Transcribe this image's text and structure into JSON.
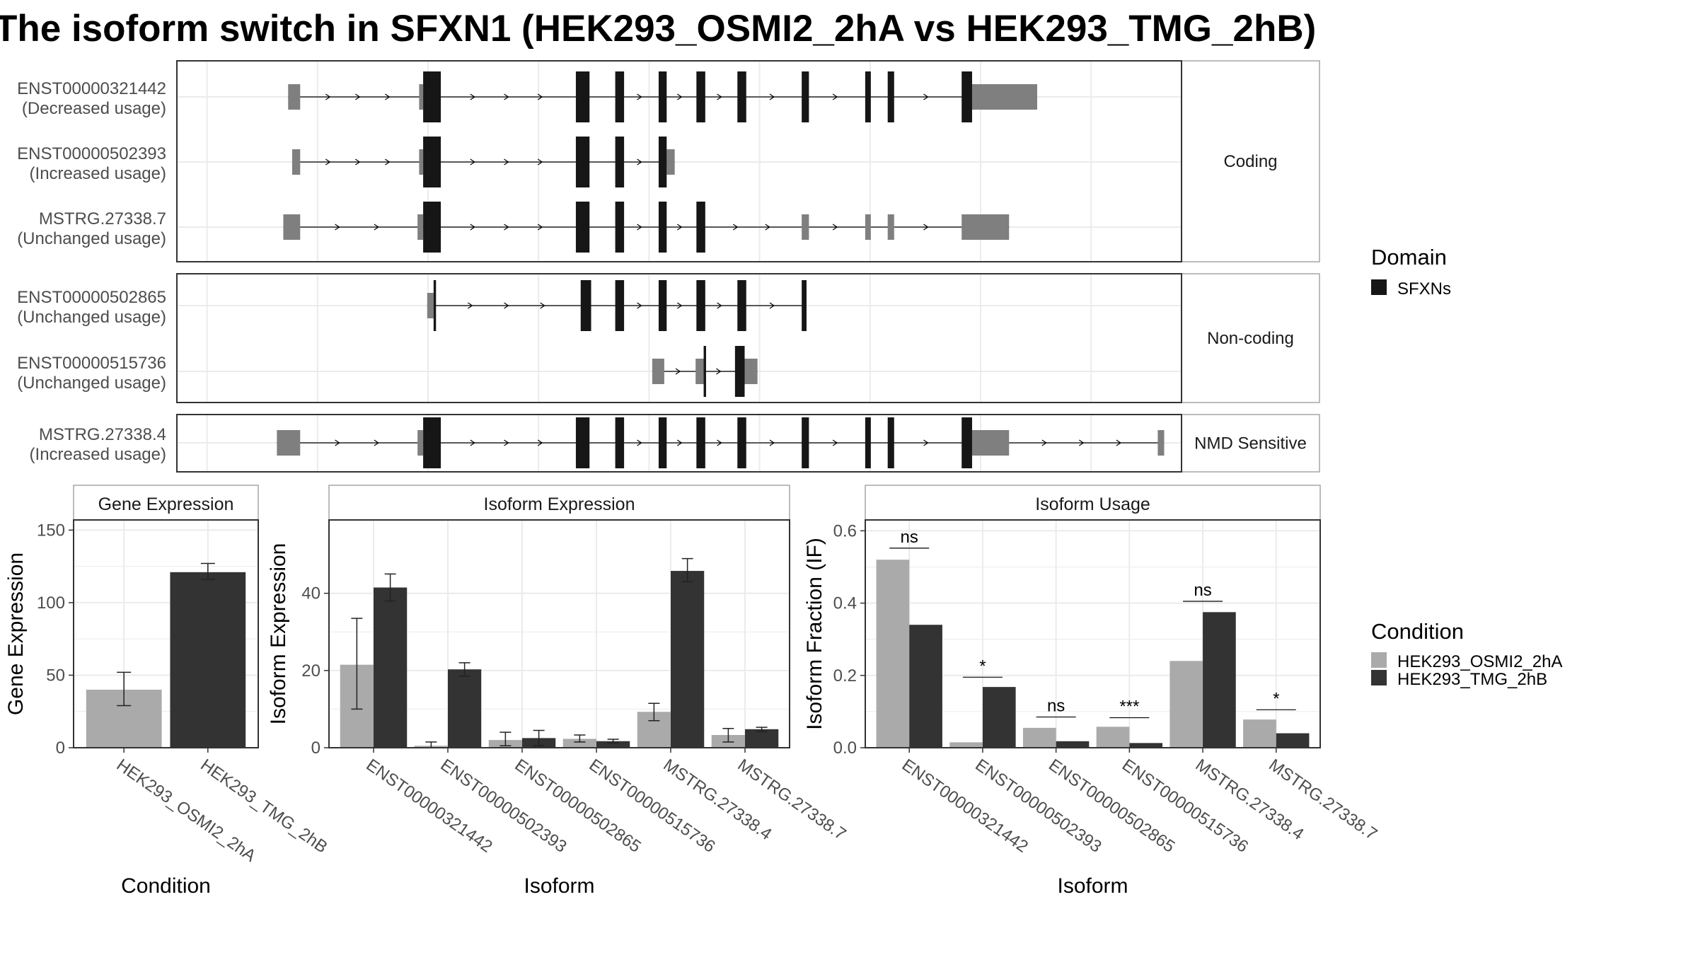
{
  "title": "The isoform switch in SFXN1 (HEK293_OSMI2_2hA vs HEK293_TMG_2hB)",
  "colors": {
    "cond1": "#aaaaaa",
    "cond2": "#333333",
    "domain": "#161616",
    "utr": "#7f7f7f",
    "grid": "#ebebeb",
    "panel_border": "#333333",
    "strip_border": "#a6a6a6",
    "strip_text": "#1a1a1a",
    "axis_text": "#4d4d4d"
  },
  "structure": {
    "facets": [
      {
        "label": "Coding",
        "isoforms": [
          {
            "id": "ENST00000321442",
            "usage": "(Decreased usage)",
            "utr": [
              [
                0.068,
                0.083
              ],
              [
                0.231,
                0.236
              ],
              [
                0.919,
                1.0
              ]
            ],
            "cds": [
              [
                0.236,
                0.258
              ],
              [
                0.426,
                0.443
              ],
              [
                0.475,
                0.486
              ],
              [
                0.529,
                0.539
              ],
              [
                0.576,
                0.587
              ],
              [
                0.627,
                0.638
              ],
              [
                0.707,
                0.716
              ],
              [
                0.786,
                0.793
              ],
              [
                0.814,
                0.822
              ],
              [
                0.906,
                0.919
              ]
            ]
          },
          {
            "id": "ENST00000502393",
            "usage": "(Increased usage)",
            "utr": [
              [
                0.073,
                0.083
              ],
              [
                0.231,
                0.236
              ],
              [
                0.539,
                0.549
              ]
            ],
            "cds": [
              [
                0.236,
                0.258
              ],
              [
                0.426,
                0.443
              ],
              [
                0.475,
                0.486
              ],
              [
                0.529,
                0.539
              ]
            ]
          },
          {
            "id": "MSTRG.27338.7",
            "usage": "(Unchanged usage)",
            "utr": [
              [
                0.062,
                0.083
              ],
              [
                0.229,
                0.236
              ],
              [
                0.707,
                0.716
              ],
              [
                0.786,
                0.793
              ],
              [
                0.814,
                0.822
              ],
              [
                0.906,
                0.965
              ]
            ],
            "cds": [
              [
                0.236,
                0.258
              ],
              [
                0.426,
                0.443
              ],
              [
                0.475,
                0.486
              ],
              [
                0.529,
                0.539
              ],
              [
                0.576,
                0.587
              ]
            ]
          }
        ]
      },
      {
        "label": "Non-coding",
        "isoforms": [
          {
            "id": "ENST00000502865",
            "usage": "(Unchanged usage)",
            "utr": [
              [
                0.241,
                0.249
              ]
            ],
            "cds": [
              [
                0.249,
                0.252
              ],
              [
                0.432,
                0.445
              ],
              [
                0.475,
                0.486
              ],
              [
                0.529,
                0.539
              ],
              [
                0.576,
                0.587
              ],
              [
                0.627,
                0.638
              ],
              [
                0.707,
                0.713
              ]
            ]
          },
          {
            "id": "ENST00000515736",
            "usage": "(Unchanged usage)",
            "utr": [
              [
                0.521,
                0.536
              ],
              [
                0.575,
                0.586
              ],
              [
                0.636,
                0.652
              ]
            ],
            "cds": [
              [
                0.585,
                0.588
              ],
              [
                0.624,
                0.636
              ]
            ]
          }
        ]
      },
      {
        "label": "NMD Sensitive",
        "isoforms": [
          {
            "id": "MSTRG.27338.4",
            "usage": "(Increased usage)",
            "utr": [
              [
                0.054,
                0.083
              ],
              [
                0.229,
                0.236
              ],
              [
                0.919,
                0.965
              ],
              [
                1.15,
                1.158
              ]
            ],
            "cds": [
              [
                0.236,
                0.258
              ],
              [
                0.426,
                0.443
              ],
              [
                0.475,
                0.486
              ],
              [
                0.529,
                0.539
              ],
              [
                0.576,
                0.587
              ],
              [
                0.627,
                0.638
              ],
              [
                0.707,
                0.716
              ],
              [
                0.786,
                0.793
              ],
              [
                0.814,
                0.822
              ],
              [
                0.906,
                0.919
              ]
            ]
          }
        ]
      }
    ],
    "legend": {
      "title": "Domain",
      "items": [
        "SFXNs"
      ]
    }
  },
  "chart_data": [
    {
      "type": "bar",
      "strip": "Gene Expression",
      "xlabel": "Condition",
      "ylabel": "Gene Expression",
      "ylim": [
        0,
        157
      ],
      "yticks": [
        0,
        50,
        100,
        150
      ],
      "categories": [
        "HEK293_OSMI2_2hA",
        "HEK293_TMG_2hB"
      ],
      "values": [
        40,
        121
      ],
      "errors": [
        [
          29,
          52
        ],
        [
          116,
          127
        ]
      ]
    },
    {
      "type": "bar",
      "strip": "Isoform Expression",
      "xlabel": "Isoform",
      "ylabel": "Isoform Expression",
      "ylim": [
        0,
        59
      ],
      "yticks": [
        0,
        20,
        40
      ],
      "categories": [
        "ENST00000321442",
        "ENST00000502393",
        "ENST00000502865",
        "ENST00000515736",
        "MSTRG.27338.4",
        "MSTRG.27338.7"
      ],
      "series": [
        {
          "name": "HEK293_OSMI2_2hA",
          "values": [
            21.5,
            0.5,
            2.0,
            2.3,
            9.3,
            3.3
          ],
          "errors": [
            [
              10,
              33.5
            ],
            [
              0,
              1.5
            ],
            [
              0.5,
              4
            ],
            [
              1.5,
              3.3
            ],
            [
              7,
              11.5
            ],
            [
              1.5,
              5
            ]
          ]
        },
        {
          "name": "HEK293_TMG_2hB",
          "values": [
            41.5,
            20.3,
            2.5,
            1.7,
            45.8,
            4.8
          ],
          "errors": [
            [
              38,
              45
            ],
            [
              18.5,
              22
            ],
            [
              0.5,
              4.5
            ],
            [
              1.2,
              2.2
            ],
            [
              43,
              49
            ],
            [
              4.2,
              5.3
            ]
          ]
        }
      ]
    },
    {
      "type": "bar",
      "strip": "Isoform Usage",
      "xlabel": "Isoform",
      "ylabel": "Isoform Fraction (IF)",
      "ylim": [
        0,
        0.63
      ],
      "yticks": [
        0.0,
        0.2,
        0.4,
        0.6
      ],
      "ytick_labels": [
        "0.0",
        "0.2",
        "0.4",
        "0.6"
      ],
      "categories": [
        "ENST00000321442",
        "ENST00000502393",
        "ENST00000502865",
        "ENST00000515736",
        "MSTRG.27338.4",
        "MSTRG.27338.7"
      ],
      "series": [
        {
          "name": "HEK293_OSMI2_2hA",
          "values": [
            0.52,
            0.015,
            0.055,
            0.058,
            0.24,
            0.078
          ]
        },
        {
          "name": "HEK293_TMG_2hB",
          "values": [
            0.34,
            0.168,
            0.018,
            0.013,
            0.375,
            0.04
          ]
        }
      ],
      "significance": [
        "ns",
        "*",
        "ns",
        "***",
        "ns",
        "*"
      ],
      "sig_y": [
        0.552,
        0.195,
        0.085,
        0.083,
        0.405,
        0.105
      ]
    }
  ],
  "condition_legend": {
    "title": "Condition",
    "items": [
      "HEK293_OSMI2_2hA",
      "HEK293_TMG_2hB"
    ]
  }
}
